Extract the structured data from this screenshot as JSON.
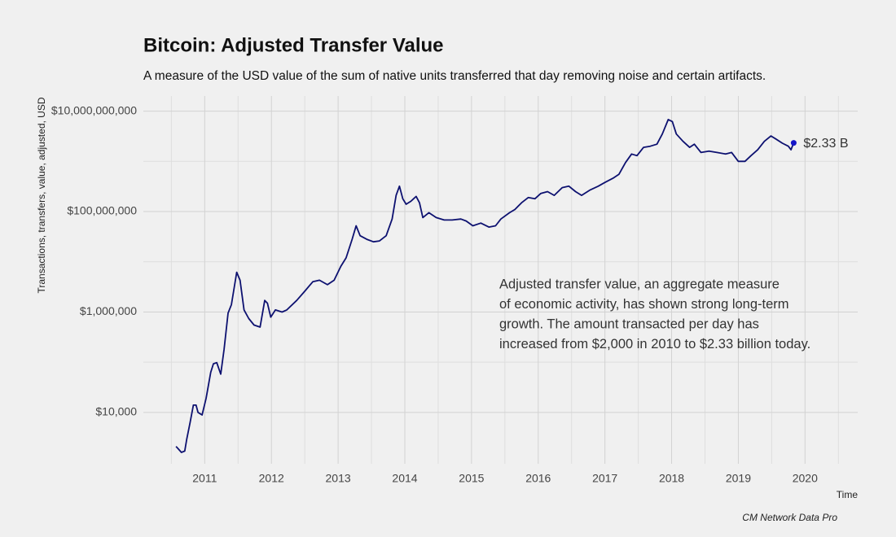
{
  "chart_data": {
    "type": "line",
    "title": "Bitcoin: Adjusted Transfer Value",
    "subtitle": "A measure of the USD value of the sum of native units transferred that day removing noise and certain artifacts.",
    "y_label": "Transactions, transfers, value, adjusted, USD",
    "x_label": "Time",
    "caption": "CM Network Data Pro",
    "annotation": [
      "Adjusted transfer value, an aggregate measure",
      "of economic activity, has shown strong long-term",
      "growth. The amount transacted per day has",
      "increased from $2,000 in 2010 to $2.33 billion today."
    ],
    "annotation_color": "#7b1b1b",
    "ylog": true,
    "grid": true,
    "xlim": [
      2010.08,
      2020.79
    ],
    "ylim": [
      950,
      20000000000.0
    ],
    "xticks": [
      2011,
      2012,
      2013,
      2014,
      2015,
      2016,
      2017,
      2018,
      2019,
      2020
    ],
    "xminor": [
      2010.5,
      2011.5,
      2012.5,
      2013.5,
      2014.5,
      2015.5,
      2016.5,
      2017.5,
      2018.5,
      2019.5,
      2020.5
    ],
    "yticks": [
      {
        "value": 10000,
        "label": "$10,000"
      },
      {
        "value": 1000000,
        "label": "$1,000,000"
      },
      {
        "value": 100000000,
        "label": "$100,000,000"
      },
      {
        "value": 10000000000,
        "label": "$10,000,000,000"
      }
    ],
    "yminor": [
      100000,
      10000000,
      1000000000
    ],
    "series": [
      {
        "color": "#0d1170",
        "end_color": "#1515c8",
        "end_label": "$2.33 B",
        "x": [
          2010.57,
          2010.6,
          2010.65,
          2010.7,
          2010.73,
          2010.78,
          2010.83,
          2010.87,
          2010.9,
          2010.96,
          2011.02,
          2011.09,
          2011.13,
          2011.18,
          2011.24,
          2011.29,
          2011.35,
          2011.4,
          2011.48,
          2011.53,
          2011.59,
          2011.66,
          2011.74,
          2011.83,
          2011.9,
          2011.94,
          2011.99,
          2012.06,
          2012.16,
          2012.23,
          2012.38,
          2012.5,
          2012.62,
          2012.72,
          2012.84,
          2012.94,
          2013.04,
          2013.12,
          2013.21,
          2013.27,
          2013.33,
          2013.43,
          2013.53,
          2013.62,
          2013.72,
          2013.81,
          2013.87,
          2013.92,
          2013.97,
          2014.02,
          2014.09,
          2014.17,
          2014.22,
          2014.27,
          2014.36,
          2014.47,
          2014.59,
          2014.71,
          2014.84,
          2014.92,
          2015.02,
          2015.14,
          2015.26,
          2015.36,
          2015.44,
          2015.57,
          2015.65,
          2015.75,
          2015.85,
          2015.95,
          2016.04,
          2016.14,
          2016.24,
          2016.36,
          2016.46,
          2016.56,
          2016.65,
          2016.78,
          2016.9,
          2017.0,
          2017.12,
          2017.21,
          2017.31,
          2017.4,
          2017.48,
          2017.58,
          2017.68,
          2017.78,
          2017.86,
          2017.95,
          2018.01,
          2018.07,
          2018.17,
          2018.27,
          2018.34,
          2018.44,
          2018.56,
          2018.68,
          2018.81,
          2018.9,
          2019.0,
          2019.1,
          2019.19,
          2019.29,
          2019.39,
          2019.49,
          2019.56,
          2019.66,
          2019.75,
          2019.79,
          2019.83
        ],
        "values": [
          2100.0,
          1900.0,
          1600.0,
          1700.0,
          2900.0,
          6200.0,
          14000.0,
          14000.0,
          10000.0,
          8900.0,
          19000.0,
          63000.0,
          93000.0,
          98000.0,
          58000.0,
          180000.0,
          950000.0,
          1400000.0,
          6200000.0,
          4300000.0,
          1100000.0,
          740000.0,
          550000.0,
          500000.0,
          1700000.0,
          1500000.0,
          790000.0,
          1100000.0,
          1000000.0,
          1100000.0,
          1700000.0,
          2600000.0,
          4000000.0,
          4300000.0,
          3500000.0,
          4300000.0,
          8100000.0,
          12000000.0,
          28000000.0,
          52000000.0,
          33000000.0,
          28000000.0,
          25000000.0,
          26000000.0,
          33000000.0,
          71000000.0,
          210000000.0,
          320000000.0,
          180000000.0,
          140000000.0,
          160000000.0,
          200000000.0,
          150000000.0,
          76000000.0,
          95000000.0,
          76000000.0,
          68000000.0,
          68000000.0,
          71000000.0,
          65000000.0,
          52000000.0,
          59000000.0,
          49000000.0,
          52000000.0,
          71000000.0,
          95000000.0,
          110000000.0,
          150000000.0,
          190000000.0,
          180000000.0,
          230000000.0,
          250000000.0,
          210000000.0,
          300000000.0,
          320000000.0,
          250000000.0,
          210000000.0,
          270000000.0,
          320000000.0,
          380000000.0,
          460000000.0,
          550000000.0,
          950000000.0,
          1400000000.0,
          1300000000.0,
          1900000000.0,
          2000000000.0,
          2200000000.0,
          3500000000.0,
          6800000000.0,
          6200000000.0,
          3500000000.0,
          2500000000.0,
          1900000000.0,
          2200000000.0,
          1500000000.0,
          1600000000.0,
          1500000000.0,
          1400000000.0,
          1500000000.0,
          1000000000.0,
          1000000000.0,
          1300000000.0,
          1700000000.0,
          2500000000.0,
          3200000000.0,
          2800000000.0,
          2300000000.0,
          2000000000.0,
          1700000000.0,
          2330000000.0
        ]
      }
    ]
  }
}
